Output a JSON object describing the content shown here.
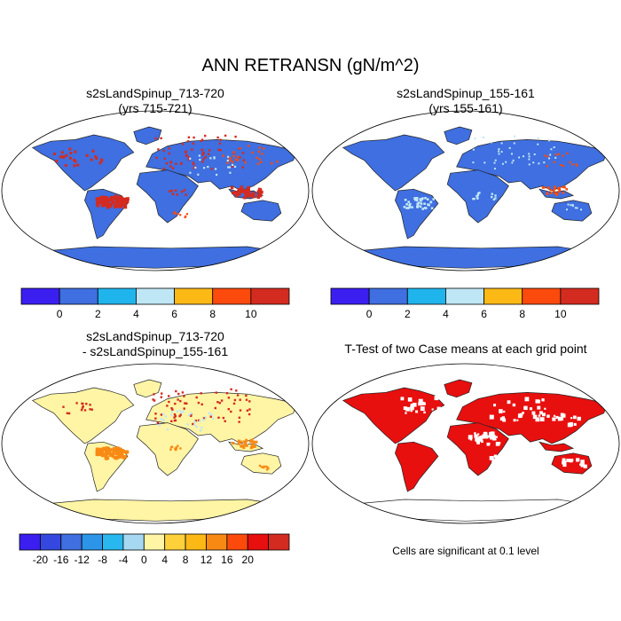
{
  "title": "ANN RETRANSN (gN/m^2)",
  "panels": [
    {
      "id": "case1",
      "title_line1": "s2sLandSpinup_713-720",
      "title_line2": "(yrs 715-721)"
    },
    {
      "id": "case2",
      "title_line1": "s2sLandSpinup_155-161",
      "title_line2": "(yrs 155-161)"
    },
    {
      "id": "diff",
      "title_line1": "s2sLandSpinup_713-720",
      "title_line2": "- s2sLandSpinup_155-161"
    },
    {
      "id": "ttest",
      "title_line1": "T-Test of two Case means at each grid point",
      "title_line2": ""
    }
  ],
  "colorbars": {
    "case": {
      "colors": [
        "#3b1ff0",
        "#3f6fe0",
        "#20b4ec",
        "#bfe6f5",
        "#fcb916",
        "#fb4a0c",
        "#d42b20"
      ],
      "labels": [
        "0",
        "2",
        "4",
        "6",
        "8",
        "10"
      ]
    },
    "diff": {
      "colors": [
        "#3b1ff0",
        "#3448e0",
        "#3f6fe0",
        "#2c95e8",
        "#28b7ee",
        "#a6d8f2",
        "#fff5a5",
        "#fed13b",
        "#fcb916",
        "#f88a14",
        "#fb4a0c",
        "#e80f0f",
        "#d42b20"
      ],
      "labels": [
        "-20",
        "-16",
        "-12",
        "-8",
        "-4",
        "0",
        "4",
        "8",
        "12",
        "16",
        "20"
      ]
    }
  },
  "map_colors": {
    "ocean": "#ffffff",
    "case_land": "#3f6fe0",
    "case_hot": "#d42b20",
    "case_warm": "#fb4a0c",
    "case_light": "#bfe6f5",
    "diff_land": "#fff5a5",
    "diff_warm": "#f88a14",
    "diff_hot": "#d42b20",
    "ttest_sig": "#e80f0f"
  },
  "significance_note": "Cells are significant at 0.1 level"
}
